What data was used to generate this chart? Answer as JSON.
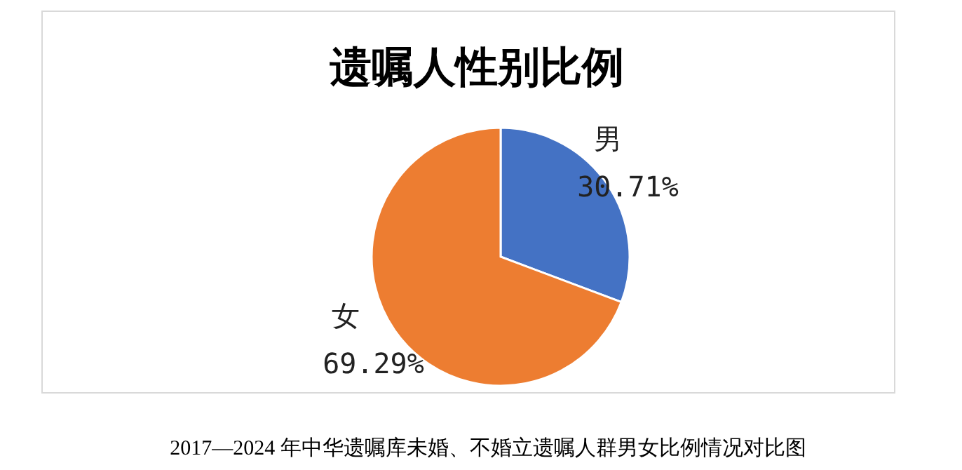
{
  "chart_data": {
    "type": "pie",
    "title": "遗嘱人性别比例",
    "categories": [
      "男",
      "女"
    ],
    "values": [
      30.71,
      69.29
    ],
    "value_labels": [
      "30.71%",
      "69.29%"
    ],
    "colors": [
      "#4472c4",
      "#ed7d31"
    ],
    "legend": false,
    "annotations": [
      "2017—2024 年中华遗嘱库未婚、不婚立遗嘱人群男女比例情况对比图"
    ]
  }
}
